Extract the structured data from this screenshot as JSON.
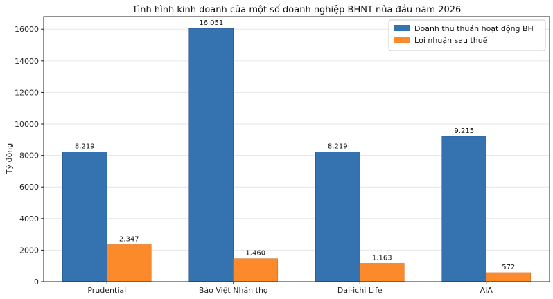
{
  "chart_data": {
    "type": "bar",
    "title": "Tình hình kinh doanh của một số doanh nghiệp BHNT nửa đầu năm 2026",
    "xlabel": "",
    "ylabel": "Tỷ đồng",
    "categories": [
      "Prudential",
      "Bảo Việt Nhân thọ",
      "Dai-ichi Life",
      "AIA"
    ],
    "series": [
      {
        "name": "Doanh thu thuần hoạt động BH",
        "color": "#3572b0",
        "values": [
          8219,
          16051,
          8219,
          9215
        ],
        "labels": [
          "8.219",
          "16.051",
          "8.219",
          "9.215"
        ]
      },
      {
        "name": "Lợi nhuận sau thuế",
        "color": "#fd8a2a",
        "values": [
          2347,
          1460,
          1163,
          572
        ],
        "labels": [
          "2.347",
          "1.460",
          "1.163",
          "572"
        ]
      }
    ],
    "ylim": [
      0,
      16800
    ],
    "yticks": [
      0,
      2000,
      4000,
      6000,
      8000,
      10000,
      12000,
      14000,
      16000
    ],
    "grid": true,
    "legend_position": "top-right"
  }
}
